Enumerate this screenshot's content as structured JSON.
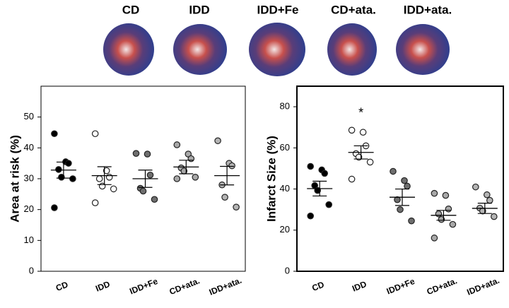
{
  "photo_labels": [
    "CD",
    "IDD",
    "IDD+Fe",
    "CD+ata.",
    "IDD+ata."
  ],
  "chart_data": [
    {
      "type": "dotplot",
      "ylabel": "Area at risk (%)",
      "categories": [
        "CD",
        "IDD",
        "IDD+Fe",
        "CD+ata.",
        "IDD+ata."
      ],
      "colors": [
        "#000000",
        "#ffffff",
        "#6e6e6e",
        "#a8a8a8",
        "#b4b4b4"
      ],
      "points": [
        [
          44.6,
          35.5,
          35,
          33,
          30.5,
          30,
          20.6
        ],
        [
          44.6,
          32.6,
          30.5,
          30,
          27.6,
          26.7,
          22.2
        ],
        [
          38.2,
          38,
          31.2,
          26.9,
          26,
          23.3
        ],
        [
          41,
          38,
          36.5,
          33.5,
          32.5,
          30.5,
          30
        ],
        [
          42.3,
          35,
          34.2,
          28,
          24,
          20.8
        ]
      ],
      "means": [
        32.8,
        31,
        30,
        33.8,
        31
      ],
      "sem": [
        2.6,
        2.9,
        2.8,
        2.2,
        3
      ],
      "ylim": [
        0,
        60
      ],
      "yticks": [
        0,
        10,
        20,
        30,
        40,
        50
      ]
    },
    {
      "type": "dotplot",
      "ylabel": "Infarct Size (%)",
      "categories": [
        "CD",
        "IDD",
        "IDD+Fe",
        "CD+ata.",
        "IDD+ata."
      ],
      "colors": [
        "#000000",
        "#ffffff",
        "#6e6e6e",
        "#a8a8a8",
        "#b4b4b4"
      ],
      "points": [
        [
          51,
          49.3,
          47.6,
          41.7,
          39.3,
          32.4,
          26.9
        ],
        [
          68.6,
          67.6,
          61,
          57.2,
          55.5,
          53.1,
          44.8
        ],
        [
          48.6,
          44.1,
          41.4,
          34.8,
          30,
          24.5
        ],
        [
          37.9,
          36.9,
          30.3,
          27.9,
          25.2,
          22.8,
          16.2
        ],
        [
          41,
          37.2,
          34.5,
          30.7,
          29.3,
          26.6
        ]
      ],
      "means": [
        40.2,
        57.8,
        36,
        27.2,
        30.6
      ],
      "sem": [
        3.6,
        3.2,
        4,
        2.4,
        2.5
      ],
      "annotations": [
        {
          "text": "*",
          "category": 1,
          "y": 78
        }
      ],
      "ylim": [
        0,
        90
      ],
      "yticks": [
        0,
        20,
        40,
        60,
        80
      ]
    }
  ]
}
